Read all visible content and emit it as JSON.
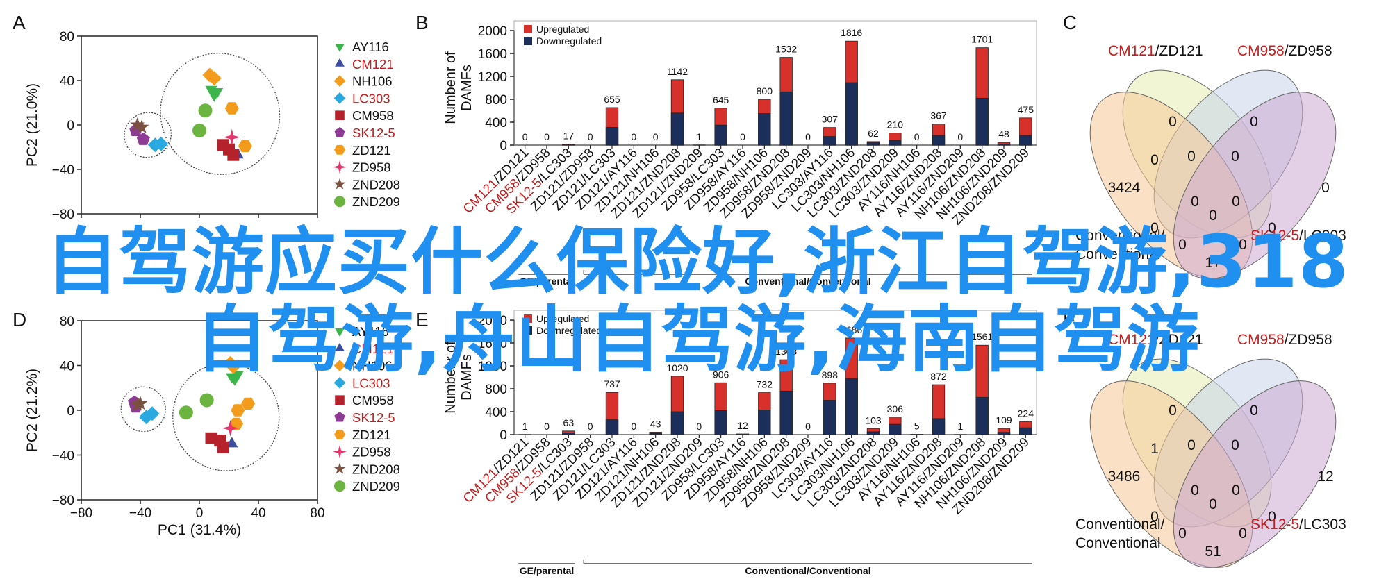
{
  "colors": {
    "upregulated": "#d8302a",
    "downregulated": "#1c2f5a",
    "red_label": "#c0201f",
    "overlay_text": "#1f8ff0"
  },
  "panels": {
    "A": "A",
    "B": "B",
    "C": "C",
    "D": "D",
    "E": "E",
    "F": "F"
  },
  "legend_samples": [
    {
      "label": "AY116",
      "shape": "triangle-down",
      "color": "#3ab54a",
      "red": false
    },
    {
      "label": "CM121",
      "shape": "triangle-up",
      "color": "#3b4ea0",
      "red": true
    },
    {
      "label": "NH106",
      "shape": "diamond",
      "color": "#f39c1c",
      "red": false
    },
    {
      "label": "LC303",
      "shape": "diamond",
      "color": "#29a9e0",
      "red": true
    },
    {
      "label": "CM958",
      "shape": "square",
      "color": "#b5222b",
      "red": false
    },
    {
      "label": "SK12-5",
      "shape": "pentagon",
      "color": "#8e3b96",
      "red": true
    },
    {
      "label": "ZD121",
      "shape": "hexagon",
      "color": "#f39c1c",
      "red": false
    },
    {
      "label": "ZD958",
      "shape": "star4",
      "color": "#e8336b",
      "red": false
    },
    {
      "label": "ZND208",
      "shape": "star",
      "color": "#7a5040",
      "red": false
    },
    {
      "label": "ZND209",
      "shape": "circle",
      "color": "#6bb43f",
      "red": false
    }
  ],
  "bar_categories": [
    [
      "CM121",
      "/ZD121"
    ],
    [
      "CM958",
      "/ZD958"
    ],
    [
      "SK12-5",
      "/LC303"
    ],
    [
      "ZD121/ZD958",
      ""
    ],
    [
      "ZD121/LC303",
      ""
    ],
    [
      "ZD121/AY116",
      ""
    ],
    [
      "ZD121/NH106",
      ""
    ],
    [
      "ZD121/ZND208",
      ""
    ],
    [
      "ZD121/ZND209",
      ""
    ],
    [
      "ZD958/LC303",
      ""
    ],
    [
      "ZD958/AY116",
      ""
    ],
    [
      "ZD958/NH106",
      ""
    ],
    [
      "ZD958/ZND208",
      ""
    ],
    [
      "ZD958/ZND209",
      ""
    ],
    [
      "LC303/AY116",
      ""
    ],
    [
      "LC303/NH106",
      ""
    ],
    [
      "LC303/ZND208",
      ""
    ],
    [
      "LC303/ZND209",
      ""
    ],
    [
      "AY116/NH106",
      ""
    ],
    [
      "AY116/ZND208",
      ""
    ],
    [
      "AY116/ZND209",
      ""
    ],
    [
      "NH106/ZND208",
      ""
    ],
    [
      "NH106/ZND209",
      ""
    ],
    [
      "ZND208/ZND209",
      ""
    ]
  ],
  "chart_data": [
    {
      "panel": "A",
      "type": "scatter",
      "xlabel": "",
      "ylabel": "PC2 (21.0%)",
      "xlim": [
        -80,
        80
      ],
      "ylim": [
        -80,
        80
      ],
      "xticks": [
        "−80",
        "−40",
        "0",
        "40",
        "80"
      ],
      "yticks": [
        "80",
        "40",
        "0",
        "−40",
        "−80"
      ],
      "points": [
        {
          "s": "AY116",
          "x": 8,
          "y": 32
        },
        {
          "s": "AY116",
          "x": 12,
          "y": 30
        },
        {
          "s": "AY116",
          "x": 10,
          "y": 27
        },
        {
          "s": "CM121",
          "x": 26,
          "y": -27
        },
        {
          "s": "NH106",
          "x": 7,
          "y": 45
        },
        {
          "s": "NH106",
          "x": 10,
          "y": 42
        },
        {
          "s": "LC303",
          "x": -30,
          "y": -18
        },
        {
          "s": "LC303",
          "x": -26,
          "y": -17
        },
        {
          "s": "CM958",
          "x": 16,
          "y": -18
        },
        {
          "s": "CM958",
          "x": 20,
          "y": -22
        },
        {
          "s": "CM958",
          "x": 23,
          "y": -27
        },
        {
          "s": "SK12-5",
          "x": -43,
          "y": -5
        },
        {
          "s": "SK12-5",
          "x": -38,
          "y": -13
        },
        {
          "s": "ZD121",
          "x": 22,
          "y": 15
        },
        {
          "s": "ZD121",
          "x": 31,
          "y": -19
        },
        {
          "s": "ZD958",
          "x": 22,
          "y": -11
        },
        {
          "s": "ZND208",
          "x": -42,
          "y": 0
        },
        {
          "s": "ZND208",
          "x": -39,
          "y": -2
        },
        {
          "s": "ZND209",
          "x": 4,
          "y": 13
        },
        {
          "s": "ZND209",
          "x": 0,
          "y": -5
        }
      ],
      "ellipses": [
        {
          "cx": -35,
          "cy": -9,
          "rx": 16,
          "ry": 20,
          "rot": -20
        },
        {
          "cx": 14,
          "cy": 10,
          "rx": 40,
          "ry": 55,
          "rot": -30
        }
      ]
    },
    {
      "panel": "B",
      "type": "bar",
      "stacked": true,
      "ylabel": "Numbenr of\nDAMFs",
      "ylim": [
        0,
        2000
      ],
      "yticks": [
        "2000",
        "1600",
        "1200",
        "800",
        "400",
        "0"
      ],
      "legend": [
        "Upregulated",
        "Downregulated"
      ],
      "totals": [
        0,
        0,
        17,
        0,
        655,
        0,
        0,
        1142,
        1,
        645,
        0,
        800,
        1532,
        0,
        307,
        1816,
        62,
        210,
        0,
        367,
        0,
        1701,
        48,
        475
      ],
      "down": [
        0,
        0,
        6,
        0,
        310,
        0,
        0,
        560,
        0,
        350,
        0,
        550,
        930,
        0,
        150,
        1090,
        50,
        80,
        0,
        170,
        0,
        820,
        20,
        170
      ],
      "group_labels": [
        "GE/parental",
        "Conventional/Conventional"
      ]
    },
    {
      "panel": "C",
      "type": "venn",
      "set_labels": [
        [
          "CM121",
          "/ZD121"
        ],
        [
          "CM958",
          "/ZD958"
        ],
        [
          "Conventional/",
          "Conventional"
        ],
        [
          "SK12-5",
          "/LC303"
        ]
      ],
      "regions": [
        "0",
        "0",
        "3424",
        "0",
        "0",
        "0",
        "0",
        "0",
        "0",
        "0",
        "0",
        "0",
        "0",
        "0",
        "17"
      ]
    },
    {
      "panel": "D",
      "type": "scatter",
      "xlabel": "PC1 (31.4%)",
      "ylabel": "PC2 (21.2%)",
      "xlim": [
        -80,
        80
      ],
      "ylim": [
        -80,
        80
      ],
      "xticks": [
        "−80",
        "−40",
        "0",
        "40",
        "80"
      ],
      "yticks": [
        "80",
        "40",
        "0",
        "−40",
        "−80"
      ],
      "points": [
        {
          "s": "AY116",
          "x": 22,
          "y": 30
        },
        {
          "s": "AY116",
          "x": 26,
          "y": 32
        },
        {
          "s": "AY116",
          "x": 24,
          "y": 28
        },
        {
          "s": "CM121",
          "x": 22,
          "y": -30
        },
        {
          "s": "NH106",
          "x": 21,
          "y": 42
        },
        {
          "s": "NH106",
          "x": 23,
          "y": 39
        },
        {
          "s": "LC303",
          "x": -32,
          "y": -3
        },
        {
          "s": "LC303",
          "x": -36,
          "y": -6
        },
        {
          "s": "CM958",
          "x": 8,
          "y": -25
        },
        {
          "s": "CM958",
          "x": 14,
          "y": -27
        },
        {
          "s": "CM958",
          "x": 16,
          "y": -33
        },
        {
          "s": "SK12-5",
          "x": -44,
          "y": 7
        },
        {
          "s": "SK12-5",
          "x": -43,
          "y": 3
        },
        {
          "s": "ZD121",
          "x": 33,
          "y": 6
        },
        {
          "s": "ZD121",
          "x": 26,
          "y": 0
        },
        {
          "s": "ZD121",
          "x": 25,
          "y": -12
        },
        {
          "s": "ZD958",
          "x": 21,
          "y": -16
        },
        {
          "s": "ZND208",
          "x": -42,
          "y": 5
        },
        {
          "s": "ZND208",
          "x": -40,
          "y": 6
        },
        {
          "s": "ZND209",
          "x": 5,
          "y": 9
        },
        {
          "s": "ZND209",
          "x": -9,
          "y": -2
        }
      ],
      "ellipses": [
        {
          "cx": -38,
          "cy": 1,
          "rx": 15,
          "ry": 20,
          "rot": -30
        },
        {
          "cx": 18,
          "cy": -6,
          "rx": 36,
          "ry": 48,
          "rot": -10
        }
      ]
    },
    {
      "panel": "E",
      "type": "bar",
      "stacked": true,
      "ylabel": "Numbenr of\nDAMFs",
      "ylim": [
        0,
        2000
      ],
      "yticks": [
        "2000",
        "1600",
        "1200",
        "800",
        "400",
        "0"
      ],
      "legend": [
        "Upregulated",
        "Downregulated"
      ],
      "totals": [
        1,
        0,
        63,
        0,
        737,
        0,
        43,
        1020,
        0,
        906,
        12,
        732,
        1308,
        0,
        898,
        1686,
        103,
        306,
        5,
        872,
        1,
        1561,
        109,
        224
      ],
      "down": [
        0,
        0,
        30,
        0,
        260,
        0,
        20,
        400,
        0,
        420,
        0,
        430,
        760,
        0,
        600,
        980,
        50,
        180,
        0,
        280,
        0,
        650,
        40,
        120
      ],
      "group_labels": [
        "GE/parental",
        "Conventional/Conventional"
      ]
    },
    {
      "panel": "F",
      "type": "venn",
      "set_labels": [
        [
          "CM121",
          "/ZD121"
        ],
        [
          "CM958",
          "/ZD958"
        ],
        [
          "Conventional/",
          "Conventional"
        ],
        [
          "SK12-5",
          "/LC303"
        ]
      ],
      "regions": [
        "0",
        "0",
        "3486",
        "1",
        "0",
        "0",
        "12",
        "0",
        "0",
        "0",
        "0",
        "0",
        "0",
        "0",
        "51"
      ]
    }
  ],
  "overlay": {
    "line1": "自驾游应买什么保险好,浙江自驾游,318",
    "line2": "自驾游,舟山自驾游,海南自驾游"
  }
}
